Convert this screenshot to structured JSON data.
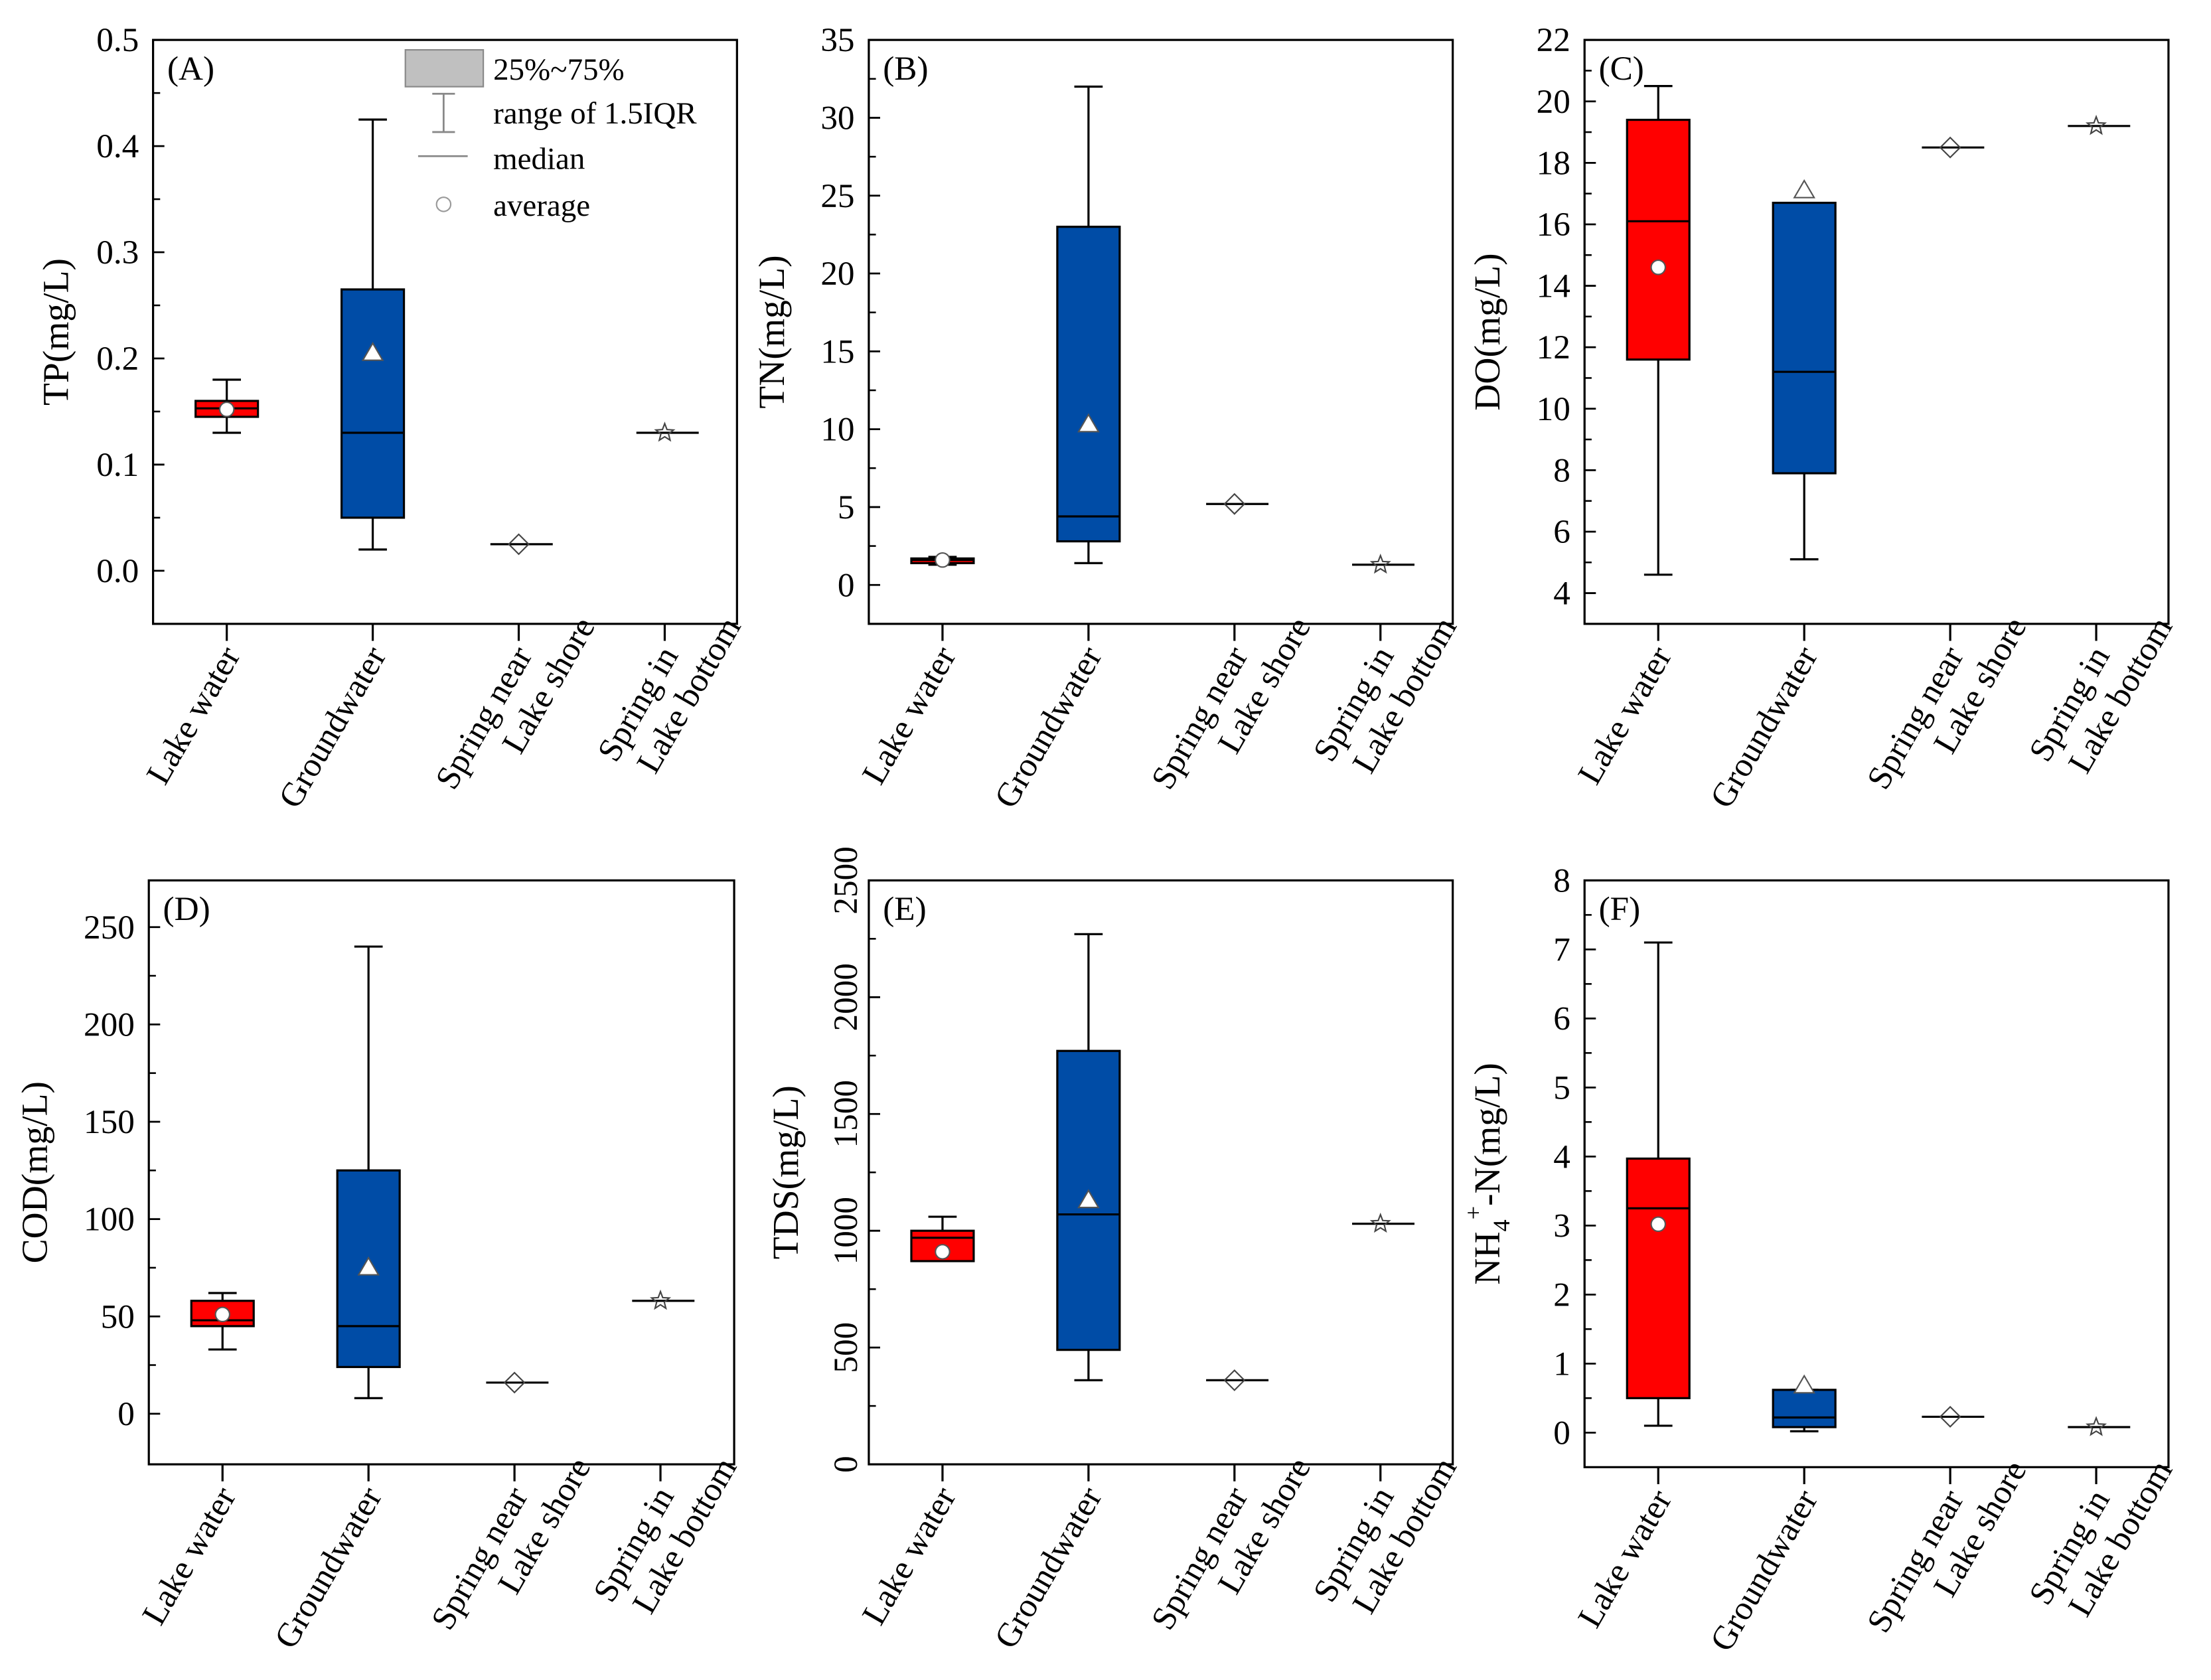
{
  "colors": {
    "lake": "#ff0000",
    "groundwater": "#004ca6",
    "legend_box": "#c0c0c0"
  },
  "legend": {
    "box": "25%~75%",
    "whisker": "range of 1.5IQR",
    "median": "median",
    "average": "average"
  },
  "categories": [
    [
      "Lake water"
    ],
    [
      "Groundwater"
    ],
    [
      "Spring near",
      "Lake shore"
    ],
    [
      "Spring in",
      "Lake bottom"
    ]
  ],
  "chart_data": [
    {
      "type": "box",
      "panel": "(A)",
      "ylabel": "TP(mg/L)",
      "ylim": [
        -0.05,
        0.5
      ],
      "ticks": [
        0.0,
        0.1,
        0.2,
        0.3,
        0.4,
        0.5
      ],
      "tick_labels": [
        "0.0",
        "0.1",
        "0.2",
        "0.3",
        "0.4",
        "0.5"
      ],
      "legend": true,
      "series": [
        {
          "min": 0.13,
          "q1": 0.145,
          "median": 0.153,
          "q3": 0.16,
          "max": 0.18,
          "mean": 0.152
        },
        {
          "min": 0.02,
          "q1": 0.05,
          "median": 0.13,
          "q3": 0.265,
          "max": 0.425,
          "mean": 0.205
        },
        {
          "median": 0.025,
          "mean": 0.025
        },
        {
          "median": 0.13,
          "mean": 0.13
        }
      ]
    },
    {
      "type": "box",
      "panel": "(B)",
      "ylabel": "TN(mg/L)",
      "ylim": [
        -2.5,
        35
      ],
      "ticks": [
        0,
        5,
        10,
        15,
        20,
        25,
        30,
        35
      ],
      "tick_labels": [
        "0",
        "5",
        "10",
        "15",
        "20",
        "25",
        "30",
        "35"
      ],
      "series": [
        {
          "min": 1.3,
          "q1": 1.4,
          "median": 1.6,
          "q3": 1.7,
          "max": 1.8,
          "mean": 1.6
        },
        {
          "min": 1.4,
          "q1": 2.8,
          "median": 4.4,
          "q3": 23,
          "max": 32,
          "mean": 10.3
        },
        {
          "median": 5.2,
          "mean": 5.2
        },
        {
          "median": 1.3,
          "mean": 1.3
        }
      ]
    },
    {
      "type": "box",
      "panel": "(C)",
      "ylabel": "DO(mg/L)",
      "ylim": [
        3,
        22
      ],
      "ticks": [
        4,
        6,
        8,
        10,
        12,
        14,
        16,
        18,
        20,
        22
      ],
      "tick_labels": [
        "4",
        "6",
        "8",
        "10",
        "12",
        "14",
        "16",
        "18",
        "20",
        "22"
      ],
      "series": [
        {
          "min": 4.6,
          "q1": 11.6,
          "median": 16.1,
          "q3": 19.4,
          "max": 20.5,
          "mean": 14.6
        },
        {
          "min": 5.1,
          "q1": 7.9,
          "median": 11.2,
          "q3": 16.7,
          "max": 16.7,
          "mean": 17.1
        },
        {
          "median": 18.5,
          "mean": 18.5
        },
        {
          "median": 19.2,
          "mean": 19.2
        }
      ]
    },
    {
      "type": "box",
      "panel": "(D)",
      "ylabel": "COD(mg/L)",
      "ylim": [
        -26,
        274
      ],
      "ticks": [
        0,
        50,
        100,
        150,
        200,
        250
      ],
      "tick_labels": [
        "0",
        "50",
        "100",
        "150",
        "200",
        "250"
      ],
      "series": [
        {
          "min": 33,
          "q1": 45,
          "median": 48,
          "q3": 58,
          "max": 62,
          "mean": 51
        },
        {
          "min": 8,
          "q1": 24,
          "median": 45,
          "q3": 125,
          "max": 240,
          "mean": 75
        },
        {
          "median": 16,
          "mean": 16
        },
        {
          "median": 58,
          "mean": 58
        }
      ]
    },
    {
      "type": "box",
      "panel": "(E)",
      "ylabel": "TDS(mg/L)",
      "ylim": [
        0,
        2500
      ],
      "ticks": [
        0,
        500,
        1000,
        1500,
        2000,
        2500
      ],
      "tick_labels": [
        "0",
        "500",
        "1000",
        "1500",
        "2000",
        "2500"
      ],
      "rotate_ticks": true,
      "series": [
        {
          "min": 870,
          "q1": 870,
          "median": 970,
          "q3": 1000,
          "max": 1060,
          "mean": 910
        },
        {
          "min": 360,
          "q1": 490,
          "median": 1070,
          "q3": 1770,
          "max": 2270,
          "mean": 1130
        },
        {
          "median": 360,
          "mean": 360
        },
        {
          "median": 1030,
          "mean": 1030
        }
      ]
    },
    {
      "type": "box",
      "panel": "(F)",
      "ylabel": "NH4+-N(mg/L)",
      "ylabel_parts": [
        "NH",
        "4",
        "+",
        "-N(mg/L)"
      ],
      "ylim": [
        -0.5,
        8
      ],
      "ticks": [
        0,
        1,
        2,
        3,
        4,
        5,
        6,
        7,
        8
      ],
      "tick_labels": [
        "0",
        "1",
        "2",
        "3",
        "4",
        "5",
        "6",
        "7",
        "8"
      ],
      "series": [
        {
          "min": 0.1,
          "q1": 0.5,
          "median": 3.25,
          "q3": 3.97,
          "max": 7.1,
          "mean": 3.02
        },
        {
          "min": 0.02,
          "q1": 0.08,
          "median": 0.22,
          "q3": 0.62,
          "max": 0.62,
          "mean": 0.68
        },
        {
          "median": 0.23,
          "mean": 0.23
        },
        {
          "median": 0.08,
          "mean": 0.08
        }
      ]
    }
  ]
}
